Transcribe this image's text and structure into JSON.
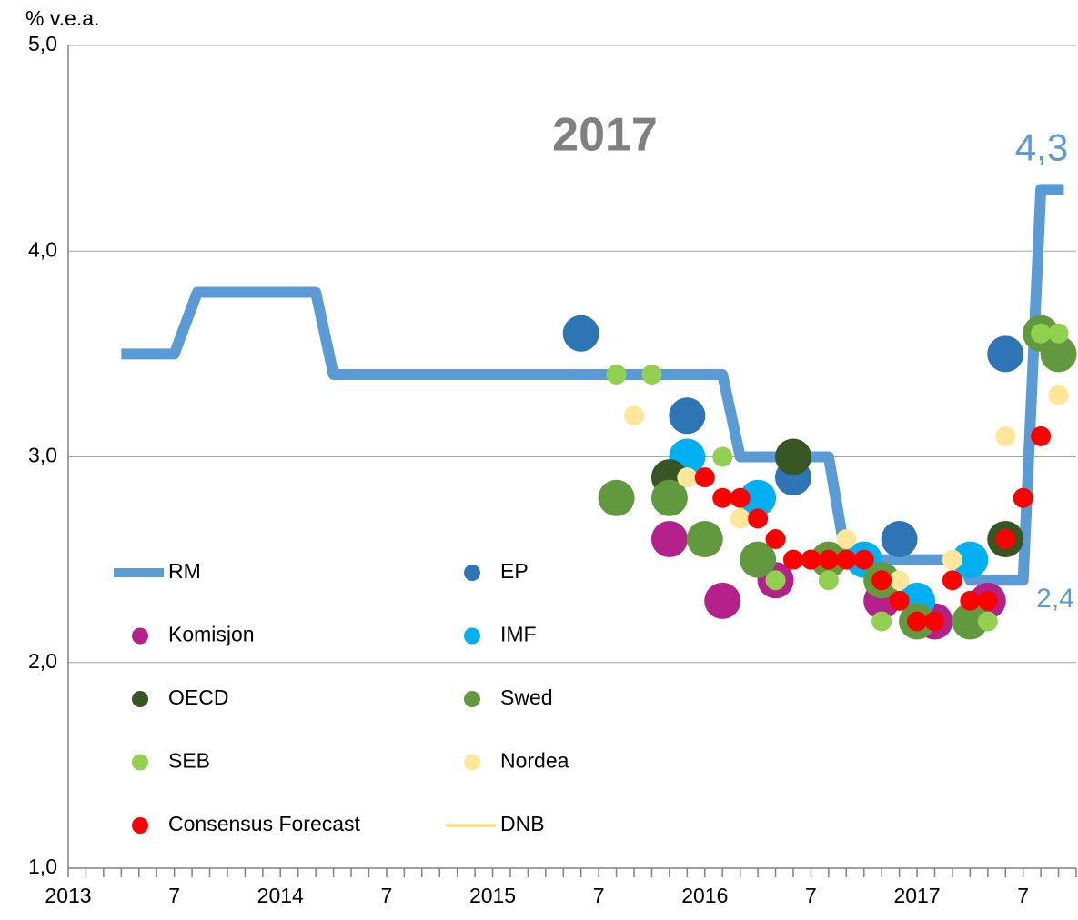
{
  "chart_data": {
    "type": "line",
    "title": "2017",
    "y_label": "% v.e.a.",
    "annotations": [
      {
        "text": "4,3",
        "value": 4.3
      },
      {
        "text": "2,4",
        "value": 2.4
      }
    ],
    "xlim": [
      0,
      57
    ],
    "ylim": [
      1,
      5
    ],
    "yticks": [
      {
        "value": 1,
        "label": "1,0"
      },
      {
        "value": 2,
        "label": "2,0"
      },
      {
        "value": 3,
        "label": "3,0"
      },
      {
        "value": 4,
        "label": "4,0"
      },
      {
        "value": 5,
        "label": "5,0"
      }
    ],
    "xticks": [
      {
        "value": 0,
        "label": "2013"
      },
      {
        "value": 6,
        "label": "7"
      },
      {
        "value": 12,
        "label": "2014"
      },
      {
        "value": 18,
        "label": "7"
      },
      {
        "value": 24,
        "label": "2015"
      },
      {
        "value": 30,
        "label": "7"
      },
      {
        "value": 36,
        "label": "2016"
      },
      {
        "value": 42,
        "label": "7"
      },
      {
        "value": 48,
        "label": "2017"
      },
      {
        "value": 54,
        "label": "7"
      }
    ],
    "xminorticks": [
      0,
      1,
      2,
      3,
      4,
      5,
      6,
      7,
      8,
      9,
      10,
      11,
      12,
      13,
      14,
      15,
      16,
      17,
      18,
      19,
      20,
      21,
      22,
      23,
      24,
      25,
      26,
      27,
      28,
      29,
      30,
      31,
      32,
      33,
      34,
      35,
      36,
      37,
      38,
      39,
      40,
      41,
      42,
      43,
      44,
      45,
      46,
      47,
      48,
      49,
      50,
      51,
      52,
      53,
      54,
      55,
      56,
      57
    ],
    "grid": true,
    "series": [
      {
        "name": "RM",
        "type": "line",
        "color": "#5b9bd5",
        "x": [
          3,
          6,
          7.3,
          14,
          15,
          37,
          38,
          43,
          44,
          50.5,
          51,
          54,
          55,
          56.3
        ],
        "values": [
          3.5,
          3.5,
          3.8,
          3.8,
          3.4,
          3.4,
          3.0,
          3.0,
          2.5,
          2.5,
          2.4,
          2.4,
          4.3,
          4.3
        ]
      },
      {
        "name": "EP",
        "type": "scatter",
        "color": "#2e75b6",
        "x": [
          29,
          35,
          41,
          47,
          53
        ],
        "values": [
          3.6,
          3.2,
          2.9,
          2.6,
          3.5
        ]
      },
      {
        "name": "Komisjon",
        "type": "scatter",
        "color": "#b5218a",
        "x": [
          34,
          37,
          40,
          46,
          49,
          52
        ],
        "values": [
          2.6,
          2.3,
          2.4,
          2.3,
          2.2,
          2.3
        ]
      },
      {
        "name": "IMF",
        "type": "scatter",
        "color": "#00b0f0",
        "x": [
          35,
          39,
          45,
          48,
          51
        ],
        "values": [
          3.0,
          2.8,
          2.5,
          2.3,
          2.5
        ]
      },
      {
        "name": "OECD",
        "type": "scatter",
        "color": "#375623",
        "x": [
          34,
          41,
          53
        ],
        "values": [
          2.9,
          3.0,
          2.6
        ]
      },
      {
        "name": "Swed",
        "type": "scatter",
        "color": "#62993e",
        "x": [
          31,
          34,
          36,
          39,
          43,
          46,
          48,
          51,
          55,
          56
        ],
        "values": [
          2.8,
          2.8,
          2.6,
          2.5,
          2.5,
          2.4,
          2.2,
          2.2,
          3.6,
          3.5
        ]
      },
      {
        "name": "SEB",
        "type": "scatter",
        "color": "#92d050",
        "x": [
          31,
          33,
          37,
          40,
          43,
          46,
          52,
          55,
          56
        ],
        "values": [
          3.4,
          3.4,
          3.0,
          2.4,
          2.4,
          2.2,
          2.2,
          3.6,
          3.6
        ]
      },
      {
        "name": "Nordea",
        "type": "scatter",
        "color": "#ffe699",
        "x": [
          32,
          35,
          38,
          44,
          47,
          50,
          53,
          56
        ],
        "values": [
          3.2,
          2.9,
          2.7,
          2.6,
          2.4,
          2.5,
          3.1,
          3.3
        ]
      },
      {
        "name": "Consensus Forecast",
        "type": "scatter",
        "color": "#ff0000",
        "x": [
          36,
          37,
          38,
          39,
          40,
          41,
          42,
          43,
          44,
          45,
          46,
          47,
          48,
          49,
          50,
          51,
          52,
          53,
          54,
          55
        ],
        "values": [
          2.9,
          2.8,
          2.8,
          2.7,
          2.6,
          2.5,
          2.5,
          2.5,
          2.5,
          2.5,
          2.4,
          2.3,
          2.2,
          2.2,
          2.4,
          2.3,
          2.3,
          2.6,
          2.8,
          3.1
        ]
      },
      {
        "name": "DNB",
        "type": "line",
        "color": "#ffd966",
        "x": [],
        "values": []
      }
    ]
  }
}
